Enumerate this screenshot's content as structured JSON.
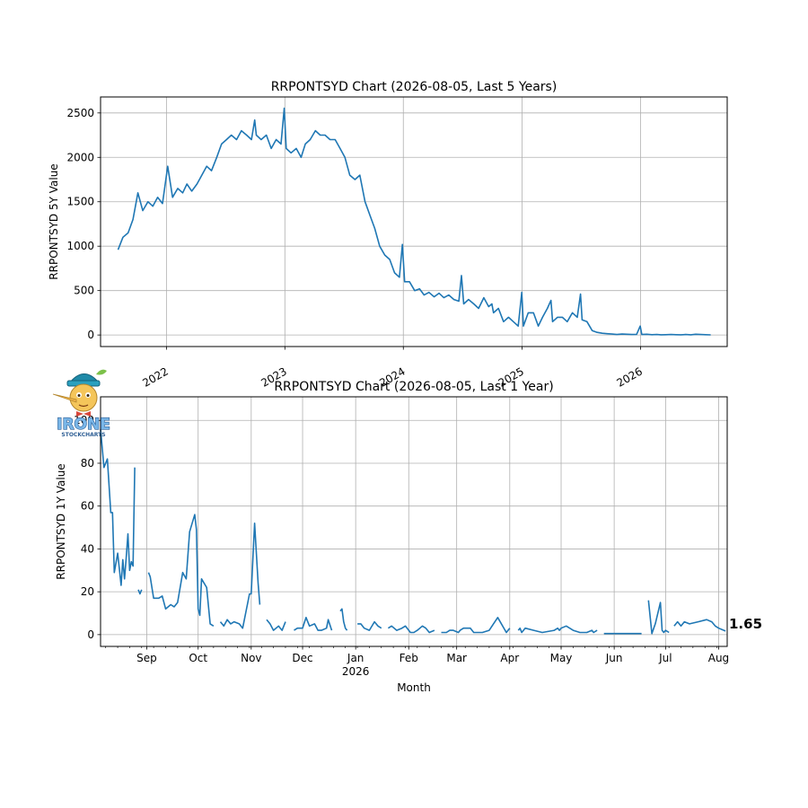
{
  "chart_data": [
    {
      "type": "line",
      "title": "RRPONTSYD Chart (2026-08-05, Last 5 Years)",
      "xlabel": "",
      "ylabel": "RRPONTSYD 5Y Value",
      "x_ticks": [
        "2022",
        "2023",
        "2024",
        "2025",
        "2026"
      ],
      "y_ticks": [
        0,
        500,
        1000,
        1500,
        2000,
        2500
      ],
      "xlim": [
        "2021-06-12",
        "2026-09-25"
      ],
      "ylim": [
        -130,
        2680
      ],
      "grid": true,
      "color": "#1f77b4",
      "series": [
        {
          "x": [
            "2021-08-05",
            "2021-08-20",
            "2021-09-05",
            "2021-09-20",
            "2021-10-05",
            "2021-10-20",
            "2021-11-05",
            "2021-11-20",
            "2021-12-05",
            "2021-12-20",
            "2022-01-05",
            "2022-01-20",
            "2022-02-05",
            "2022-02-20",
            "2022-03-05",
            "2022-03-20",
            "2022-04-05",
            "2022-04-20",
            "2022-05-05",
            "2022-05-20",
            "2022-06-05",
            "2022-06-20",
            "2022-07-05",
            "2022-07-20",
            "2022-08-05",
            "2022-08-20",
            "2022-09-05",
            "2022-09-20",
            "2022-09-30",
            "2022-10-05",
            "2022-10-20",
            "2022-11-05",
            "2022-11-20",
            "2022-12-05",
            "2022-12-20",
            "2022-12-30",
            "2023-01-05",
            "2023-01-20",
            "2023-02-05",
            "2023-02-20",
            "2023-03-05",
            "2023-03-20",
            "2023-04-05",
            "2023-04-20",
            "2023-05-05",
            "2023-05-20",
            "2023-06-05",
            "2023-06-20",
            "2023-07-05",
            "2023-07-20",
            "2023-08-05",
            "2023-08-20",
            "2023-09-05",
            "2023-09-20",
            "2023-10-05",
            "2023-10-20",
            "2023-11-05",
            "2023-11-20",
            "2023-12-05",
            "2023-12-20",
            "2023-12-29",
            "2024-01-05",
            "2024-01-20",
            "2024-02-05",
            "2024-02-20",
            "2024-03-05",
            "2024-03-20",
            "2024-04-05",
            "2024-04-20",
            "2024-05-05",
            "2024-05-20",
            "2024-06-05",
            "2024-06-20",
            "2024-06-28",
            "2024-07-05",
            "2024-07-20",
            "2024-08-05",
            "2024-08-20",
            "2024-09-05",
            "2024-09-20",
            "2024-09-30",
            "2024-10-05",
            "2024-10-20",
            "2024-11-05",
            "2024-11-20",
            "2024-12-05",
            "2024-12-20",
            "2024-12-31",
            "2025-01-05",
            "2025-01-20",
            "2025-02-05",
            "2025-02-20",
            "2025-03-05",
            "2025-03-20",
            "2025-03-31",
            "2025-04-05",
            "2025-04-20",
            "2025-05-05",
            "2025-05-20",
            "2025-06-05",
            "2025-06-20",
            "2025-06-30",
            "2025-07-05",
            "2025-07-20",
            "2025-08-05",
            "2025-08-20",
            "2025-09-05",
            "2025-09-20",
            "2025-10-05",
            "2025-10-20",
            "2025-11-05",
            "2025-11-20",
            "2025-12-05",
            "2025-12-20",
            "2025-12-31",
            "2026-01-05",
            "2026-01-20",
            "2026-02-05",
            "2026-02-20",
            "2026-03-05",
            "2026-03-20",
            "2026-04-05",
            "2026-04-20",
            "2026-05-05",
            "2026-05-20",
            "2026-06-05",
            "2026-06-20",
            "2026-07-05",
            "2026-07-20",
            "2026-08-05"
          ],
          "values": [
            960,
            1100,
            1150,
            1300,
            1600,
            1400,
            1500,
            1450,
            1550,
            1480,
            1900,
            1550,
            1650,
            1600,
            1700,
            1620,
            1700,
            1800,
            1900,
            1850,
            2000,
            2150,
            2200,
            2250,
            2200,
            2300,
            2250,
            2200,
            2420,
            2250,
            2200,
            2250,
            2100,
            2200,
            2150,
            2554,
            2100,
            2050,
            2100,
            2000,
            2150,
            2200,
            2300,
            2250,
            2250,
            2200,
            2200,
            2100,
            2000,
            1800,
            1750,
            1800,
            1500,
            1350,
            1200,
            1000,
            900,
            850,
            700,
            650,
            1019,
            600,
            600,
            500,
            520,
            450,
            480,
            430,
            470,
            420,
            450,
            400,
            380,
            670,
            350,
            400,
            350,
            300,
            420,
            320,
            350,
            250,
            300,
            150,
            200,
            150,
            100,
            480,
            100,
            250,
            250,
            100,
            200,
            300,
            390,
            150,
            200,
            200,
            150,
            250,
            200,
            460,
            170,
            150,
            50,
            30,
            20,
            15,
            10,
            5,
            10,
            8,
            5,
            7,
            100,
            5,
            8,
            3,
            5,
            2,
            3,
            5,
            3,
            2,
            5,
            2,
            8,
            5,
            3,
            1.65
          ]
        }
      ]
    },
    {
      "type": "line",
      "title": "RRPONTSYD Chart (2026-08-05, Last 1 Year)",
      "xlabel": "Month",
      "ylabel": "RRPONTSYD 1Y Value",
      "x_ticks": [
        "Sep",
        "Oct",
        "Nov",
        "Dec",
        "Jan\n2026",
        "Feb",
        "Mar",
        "Apr",
        "May",
        "Jun",
        "Jul",
        "Aug"
      ],
      "y_ticks": [
        0,
        20,
        40,
        60,
        80,
        100
      ],
      "xlim": [
        "2025-08-05",
        "2026-08-06"
      ],
      "ylim": [
        -5.5,
        111
      ],
      "grid": true,
      "color": "#1f77b4",
      "last_value_label": "1.65",
      "series": [
        {
          "x": [
            "2025-08-05",
            "2025-08-07",
            "2025-08-09",
            "2025-08-11",
            "2025-08-12",
            "2025-08-13",
            "2025-08-15",
            "2025-08-17",
            "2025-08-18",
            "2025-08-19",
            "2025-08-20",
            "2025-08-21",
            "2025-08-22",
            "2025-08-23",
            "2025-08-24",
            "2025-08-25",
            "2025-08-26",
            "2025-08-27",
            "2025-08-28",
            "2025-08-29",
            null,
            "2025-09-02",
            "2025-09-03",
            "2025-09-05",
            "2025-09-08",
            "2025-09-10",
            "2025-09-12",
            "2025-09-15",
            "2025-09-17",
            "2025-09-19",
            "2025-09-22",
            "2025-09-24",
            "2025-09-26",
            "2025-09-29",
            "2025-09-30",
            "2025-10-01",
            "2025-10-02",
            "2025-10-03",
            "2025-10-06",
            "2025-10-08",
            "2025-10-10",
            null,
            "2025-10-14",
            "2025-10-16",
            "2025-10-18",
            "2025-10-20",
            "2025-10-22",
            "2025-10-25",
            "2025-10-27",
            "2025-10-28",
            "2025-10-29",
            "2025-10-30",
            "2025-10-31",
            "2025-11-01",
            "2025-11-03",
            "2025-11-05",
            "2025-11-06",
            null,
            "2025-11-10",
            "2025-11-12",
            "2025-11-14",
            "2025-11-17",
            "2025-11-18",
            "2025-11-19",
            "2025-11-21",
            null,
            "2025-11-26",
            "2025-11-28",
            "2025-12-01",
            "2025-12-03",
            "2025-12-05",
            "2025-12-08",
            "2025-12-10",
            "2025-12-12",
            "2025-12-15",
            "2025-12-16",
            "2025-12-18",
            null,
            "2025-12-23",
            "2025-12-24",
            "2025-12-25",
            "2025-12-26",
            "2025-12-27",
            null,
            "2026-01-02",
            "2026-01-04",
            "2026-01-06",
            "2026-01-09",
            "2026-01-12",
            "2026-01-14",
            "2026-01-16",
            null,
            "2026-01-20",
            "2026-01-22",
            "2026-01-25",
            "2026-01-28",
            "2026-01-30",
            "2026-02-02",
            "2026-02-04",
            "2026-02-06",
            "2026-02-09",
            "2026-02-11",
            "2026-02-13",
            "2026-02-16",
            null,
            "2026-02-20",
            "2026-02-23",
            "2026-02-25",
            "2026-02-27",
            "2026-03-02",
            "2026-03-03",
            "2026-03-05",
            "2026-03-09",
            "2026-03-11",
            "2026-03-16",
            "2026-03-20",
            "2026-03-25",
            "2026-03-30",
            "2026-03-31",
            "2026-04-01",
            null,
            "2026-04-06",
            "2026-04-07",
            "2026-04-08",
            "2026-04-10",
            "2026-04-15",
            "2026-04-20",
            "2026-04-27",
            "2026-04-29",
            "2026-04-30",
            "2026-05-01",
            "2026-05-04",
            "2026-05-08",
            "2026-05-12",
            "2026-05-16",
            "2026-05-19",
            "2026-05-20",
            "2026-05-22",
            null,
            "2026-05-26",
            "2026-05-28",
            "2026-05-29",
            "2026-05-30",
            "2026-06-01",
            "2026-06-04",
            "2026-06-08",
            "2026-06-12",
            "2026-06-15",
            "2026-06-16",
            "2026-06-17",
            null,
            "2026-06-21",
            "2026-06-23",
            "2026-06-25",
            "2026-06-28",
            "2026-06-29",
            "2026-06-30",
            "2026-07-01",
            "2026-07-03",
            null,
            "2026-07-06",
            "2026-07-08",
            "2026-07-09",
            "2026-07-10",
            "2026-07-12",
            "2026-07-15",
            "2026-07-20",
            "2026-07-25",
            "2026-07-28",
            "2026-07-29",
            "2026-07-30",
            "2026-08-01",
            "2026-08-05"
          ],
          "values": [
            96,
            78,
            82,
            57,
            57,
            29,
            38,
            23,
            35,
            26,
            36,
            47,
            30,
            34,
            32,
            78,
            null,
            21,
            19,
            21,
            20,
            29,
            27,
            17,
            17,
            18,
            12,
            14,
            13,
            15,
            29,
            26,
            48,
            56,
            49,
            12,
            9,
            26,
            22,
            5,
            4,
            null,
            6,
            4,
            7,
            5,
            6,
            5,
            3,
            7,
            11,
            15,
            19,
            19,
            52,
            24,
            14,
            null,
            7,
            5,
            2,
            4,
            3,
            2,
            6,
            null,
            2,
            3,
            3,
            8,
            4,
            5,
            2,
            2,
            3,
            7,
            2,
            null,
            11,
            12,
            6,
            3,
            2,
            null,
            5,
            5,
            3,
            2,
            6,
            4,
            3,
            null,
            3,
            4,
            2,
            3,
            4,
            1,
            1,
            2,
            4,
            3,
            1,
            2,
            null,
            1,
            1,
            2,
            2,
            1,
            2,
            3,
            3,
            1,
            1,
            2,
            8,
            1,
            2,
            3,
            null,
            2,
            3,
            1,
            3,
            2,
            1,
            2,
            3,
            2,
            3,
            4,
            2,
            1,
            1,
            2,
            1,
            2,
            null,
            0.5,
            0.5,
            0.5,
            0.5,
            0.5,
            0.5,
            0.5,
            0.5,
            0.5,
            0.5,
            0.5,
            null,
            16,
            0.5,
            5,
            15,
            2,
            1,
            2,
            1,
            null,
            4,
            6,
            5,
            4,
            6,
            5,
            6,
            7,
            6,
            5,
            4,
            3,
            1.65
          ]
        }
      ]
    }
  ],
  "logo": {
    "icon": "pinocchio-mascot-logo",
    "text_top": "IRONE",
    "text_bottom": "STOCKCHARTS",
    "colors": {
      "fill": "#79b6e8",
      "stroke": "#3a6fa8",
      "hat": "#1f8aa8",
      "face": "#f4c55a"
    }
  }
}
